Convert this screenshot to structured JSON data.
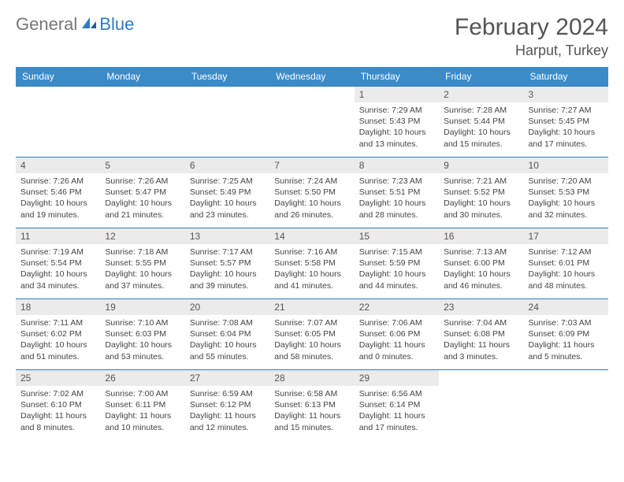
{
  "brand": {
    "part1": "General",
    "part2": "Blue"
  },
  "header": {
    "month_title": "February 2024",
    "location": "Harput, Turkey"
  },
  "colors": {
    "header_bg": "#3b8bc9",
    "header_text": "#ffffff",
    "row_border": "#2f7bbf",
    "daynum_bg": "#ebebeb",
    "body_text": "#444444",
    "title_text": "#555555",
    "brand_gray": "#777777",
    "brand_blue": "#2f7bbf",
    "page_bg": "#ffffff"
  },
  "weekdays": [
    "Sunday",
    "Monday",
    "Tuesday",
    "Wednesday",
    "Thursday",
    "Friday",
    "Saturday"
  ],
  "weeks": [
    [
      {
        "day": "",
        "sunrise": "",
        "sunset": "",
        "daylight": "",
        "empty": true
      },
      {
        "day": "",
        "sunrise": "",
        "sunset": "",
        "daylight": "",
        "empty": true
      },
      {
        "day": "",
        "sunrise": "",
        "sunset": "",
        "daylight": "",
        "empty": true
      },
      {
        "day": "",
        "sunrise": "",
        "sunset": "",
        "daylight": "",
        "empty": true
      },
      {
        "day": "1",
        "sunrise": "Sunrise: 7:29 AM",
        "sunset": "Sunset: 5:43 PM",
        "daylight": "Daylight: 10 hours and 13 minutes."
      },
      {
        "day": "2",
        "sunrise": "Sunrise: 7:28 AM",
        "sunset": "Sunset: 5:44 PM",
        "daylight": "Daylight: 10 hours and 15 minutes."
      },
      {
        "day": "3",
        "sunrise": "Sunrise: 7:27 AM",
        "sunset": "Sunset: 5:45 PM",
        "daylight": "Daylight: 10 hours and 17 minutes."
      }
    ],
    [
      {
        "day": "4",
        "sunrise": "Sunrise: 7:26 AM",
        "sunset": "Sunset: 5:46 PM",
        "daylight": "Daylight: 10 hours and 19 minutes."
      },
      {
        "day": "5",
        "sunrise": "Sunrise: 7:26 AM",
        "sunset": "Sunset: 5:47 PM",
        "daylight": "Daylight: 10 hours and 21 minutes."
      },
      {
        "day": "6",
        "sunrise": "Sunrise: 7:25 AM",
        "sunset": "Sunset: 5:49 PM",
        "daylight": "Daylight: 10 hours and 23 minutes."
      },
      {
        "day": "7",
        "sunrise": "Sunrise: 7:24 AM",
        "sunset": "Sunset: 5:50 PM",
        "daylight": "Daylight: 10 hours and 26 minutes."
      },
      {
        "day": "8",
        "sunrise": "Sunrise: 7:23 AM",
        "sunset": "Sunset: 5:51 PM",
        "daylight": "Daylight: 10 hours and 28 minutes."
      },
      {
        "day": "9",
        "sunrise": "Sunrise: 7:21 AM",
        "sunset": "Sunset: 5:52 PM",
        "daylight": "Daylight: 10 hours and 30 minutes."
      },
      {
        "day": "10",
        "sunrise": "Sunrise: 7:20 AM",
        "sunset": "Sunset: 5:53 PM",
        "daylight": "Daylight: 10 hours and 32 minutes."
      }
    ],
    [
      {
        "day": "11",
        "sunrise": "Sunrise: 7:19 AM",
        "sunset": "Sunset: 5:54 PM",
        "daylight": "Daylight: 10 hours and 34 minutes."
      },
      {
        "day": "12",
        "sunrise": "Sunrise: 7:18 AM",
        "sunset": "Sunset: 5:55 PM",
        "daylight": "Daylight: 10 hours and 37 minutes."
      },
      {
        "day": "13",
        "sunrise": "Sunrise: 7:17 AM",
        "sunset": "Sunset: 5:57 PM",
        "daylight": "Daylight: 10 hours and 39 minutes."
      },
      {
        "day": "14",
        "sunrise": "Sunrise: 7:16 AM",
        "sunset": "Sunset: 5:58 PM",
        "daylight": "Daylight: 10 hours and 41 minutes."
      },
      {
        "day": "15",
        "sunrise": "Sunrise: 7:15 AM",
        "sunset": "Sunset: 5:59 PM",
        "daylight": "Daylight: 10 hours and 44 minutes."
      },
      {
        "day": "16",
        "sunrise": "Sunrise: 7:13 AM",
        "sunset": "Sunset: 6:00 PM",
        "daylight": "Daylight: 10 hours and 46 minutes."
      },
      {
        "day": "17",
        "sunrise": "Sunrise: 7:12 AM",
        "sunset": "Sunset: 6:01 PM",
        "daylight": "Daylight: 10 hours and 48 minutes."
      }
    ],
    [
      {
        "day": "18",
        "sunrise": "Sunrise: 7:11 AM",
        "sunset": "Sunset: 6:02 PM",
        "daylight": "Daylight: 10 hours and 51 minutes."
      },
      {
        "day": "19",
        "sunrise": "Sunrise: 7:10 AM",
        "sunset": "Sunset: 6:03 PM",
        "daylight": "Daylight: 10 hours and 53 minutes."
      },
      {
        "day": "20",
        "sunrise": "Sunrise: 7:08 AM",
        "sunset": "Sunset: 6:04 PM",
        "daylight": "Daylight: 10 hours and 55 minutes."
      },
      {
        "day": "21",
        "sunrise": "Sunrise: 7:07 AM",
        "sunset": "Sunset: 6:05 PM",
        "daylight": "Daylight: 10 hours and 58 minutes."
      },
      {
        "day": "22",
        "sunrise": "Sunrise: 7:06 AM",
        "sunset": "Sunset: 6:06 PM",
        "daylight": "Daylight: 11 hours and 0 minutes."
      },
      {
        "day": "23",
        "sunrise": "Sunrise: 7:04 AM",
        "sunset": "Sunset: 6:08 PM",
        "daylight": "Daylight: 11 hours and 3 minutes."
      },
      {
        "day": "24",
        "sunrise": "Sunrise: 7:03 AM",
        "sunset": "Sunset: 6:09 PM",
        "daylight": "Daylight: 11 hours and 5 minutes."
      }
    ],
    [
      {
        "day": "25",
        "sunrise": "Sunrise: 7:02 AM",
        "sunset": "Sunset: 6:10 PM",
        "daylight": "Daylight: 11 hours and 8 minutes."
      },
      {
        "day": "26",
        "sunrise": "Sunrise: 7:00 AM",
        "sunset": "Sunset: 6:11 PM",
        "daylight": "Daylight: 11 hours and 10 minutes."
      },
      {
        "day": "27",
        "sunrise": "Sunrise: 6:59 AM",
        "sunset": "Sunset: 6:12 PM",
        "daylight": "Daylight: 11 hours and 12 minutes."
      },
      {
        "day": "28",
        "sunrise": "Sunrise: 6:58 AM",
        "sunset": "Sunset: 6:13 PM",
        "daylight": "Daylight: 11 hours and 15 minutes."
      },
      {
        "day": "29",
        "sunrise": "Sunrise: 6:56 AM",
        "sunset": "Sunset: 6:14 PM",
        "daylight": "Daylight: 11 hours and 17 minutes."
      },
      {
        "day": "",
        "sunrise": "",
        "sunset": "",
        "daylight": "",
        "empty": true
      },
      {
        "day": "",
        "sunrise": "",
        "sunset": "",
        "daylight": "",
        "empty": true
      }
    ]
  ]
}
